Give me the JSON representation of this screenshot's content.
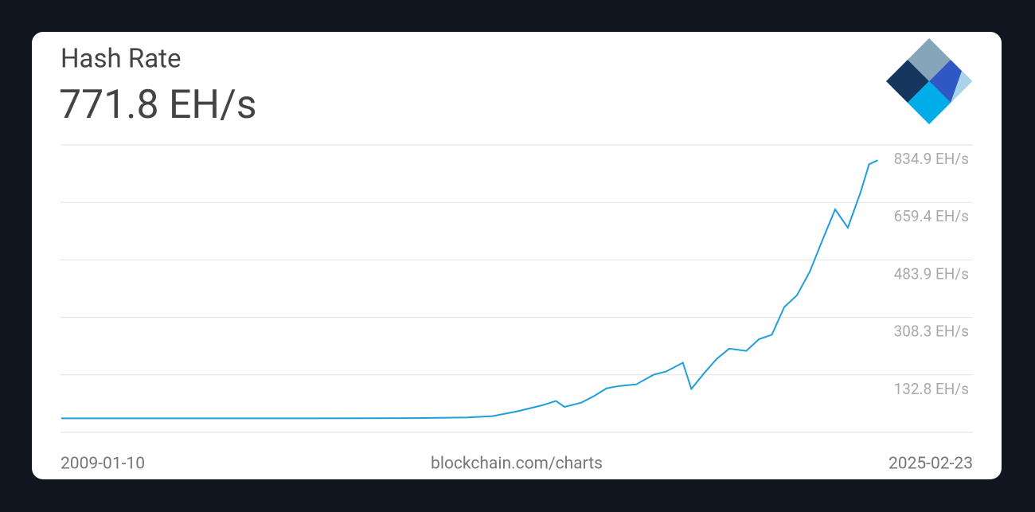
{
  "chart_data": {
    "type": "line",
    "title": "Hash Rate",
    "value": "771.8 EH/s",
    "source": "blockchain.com/charts",
    "xlim": [
      "2009-01-10",
      "2025-02-23"
    ],
    "x": [
      "2009-01",
      "2012-01",
      "2014-01",
      "2015-01",
      "2016-01",
      "2017-01",
      "2017-07",
      "2018-01",
      "2018-07",
      "2018-10",
      "2018-12",
      "2019-04",
      "2019-07",
      "2019-10",
      "2020-01",
      "2020-05",
      "2020-09",
      "2020-12",
      "2021-04",
      "2021-06",
      "2021-09",
      "2021-12",
      "2022-03",
      "2022-07",
      "2022-10",
      "2023-01",
      "2023-04",
      "2023-07",
      "2023-10",
      "2024-01",
      "2024-04",
      "2024-07",
      "2024-10",
      "2024-12",
      "2025-02"
    ],
    "series": [
      {
        "name": "Hash Rate",
        "color": "#1f9fd8",
        "values": [
          0,
          0,
          0.01,
          0.3,
          0.8,
          3,
          7,
          22,
          41,
          53,
          35,
          48,
          68,
          92,
          99,
          104,
          133,
          143,
          170,
          90,
          138,
          182,
          213,
          206,
          242,
          255,
          340,
          376,
          448,
          545,
          638,
          582,
          691,
          776,
          788
        ]
      }
    ],
    "ylim": [
      -42.7,
      834.9
    ],
    "yticks": [
      {
        "value": 132.8,
        "label": "132.8 EH/s"
      },
      {
        "value": 308.3,
        "label": "308.3 EH/s"
      },
      {
        "value": 483.9,
        "label": "483.9 EH/s"
      },
      {
        "value": 659.4,
        "label": "659.4 EH/s"
      },
      {
        "value": 834.9,
        "label": "834.9 EH/s"
      }
    ],
    "grid": true
  }
}
